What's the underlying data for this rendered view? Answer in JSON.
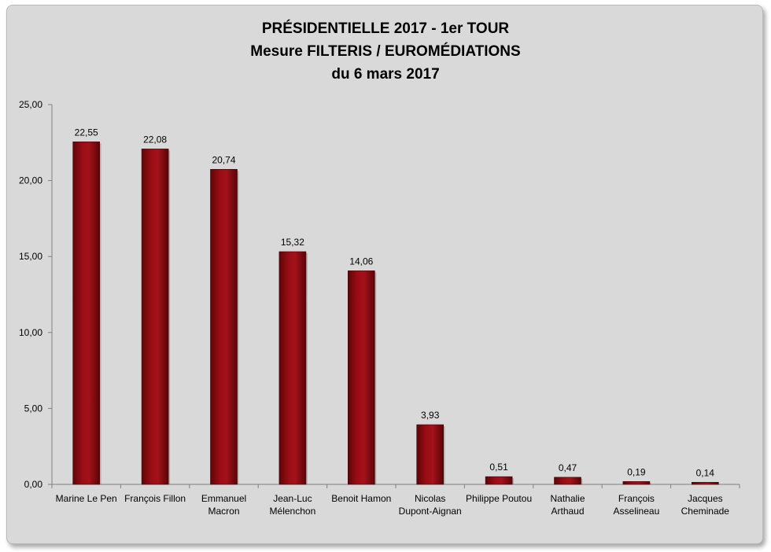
{
  "chart_data": {
    "type": "bar",
    "title": [
      "PRÉSIDENTIELLE 2017 - 1er TOUR",
      "Mesure FILTERIS / EUROMÉDIATIONS",
      "du 6 mars 2017"
    ],
    "categories": [
      [
        "Marine Le Pen"
      ],
      [
        "François Fillon"
      ],
      [
        "Emmanuel",
        "Macron"
      ],
      [
        "Jean-Luc",
        "Mélenchon"
      ],
      [
        "Benoit Hamon"
      ],
      [
        "Nicolas",
        "Dupont-Aignan"
      ],
      [
        "Philippe Poutou"
      ],
      [
        "Nathalie",
        "Arthaud"
      ],
      [
        "François",
        "Asselineau"
      ],
      [
        "Jacques",
        "Cheminade"
      ]
    ],
    "values": [
      22.55,
      22.08,
      20.74,
      15.32,
      14.06,
      3.93,
      0.51,
      0.47,
      0.19,
      0.14
    ],
    "value_labels": [
      "22,55",
      "22,08",
      "20,74",
      "15,32",
      "14,06",
      "3,93",
      "0,51",
      "0,47",
      "0,19",
      "0,14"
    ],
    "ylim": [
      0,
      25
    ],
    "yticks": [
      0,
      5,
      10,
      15,
      20,
      25
    ],
    "ytick_labels": [
      "0,00",
      "5,00",
      "10,00",
      "15,00",
      "20,00",
      "25,00"
    ],
    "xlabel": "",
    "ylabel": "",
    "grid": false,
    "bar_color": "#8b0a10"
  }
}
